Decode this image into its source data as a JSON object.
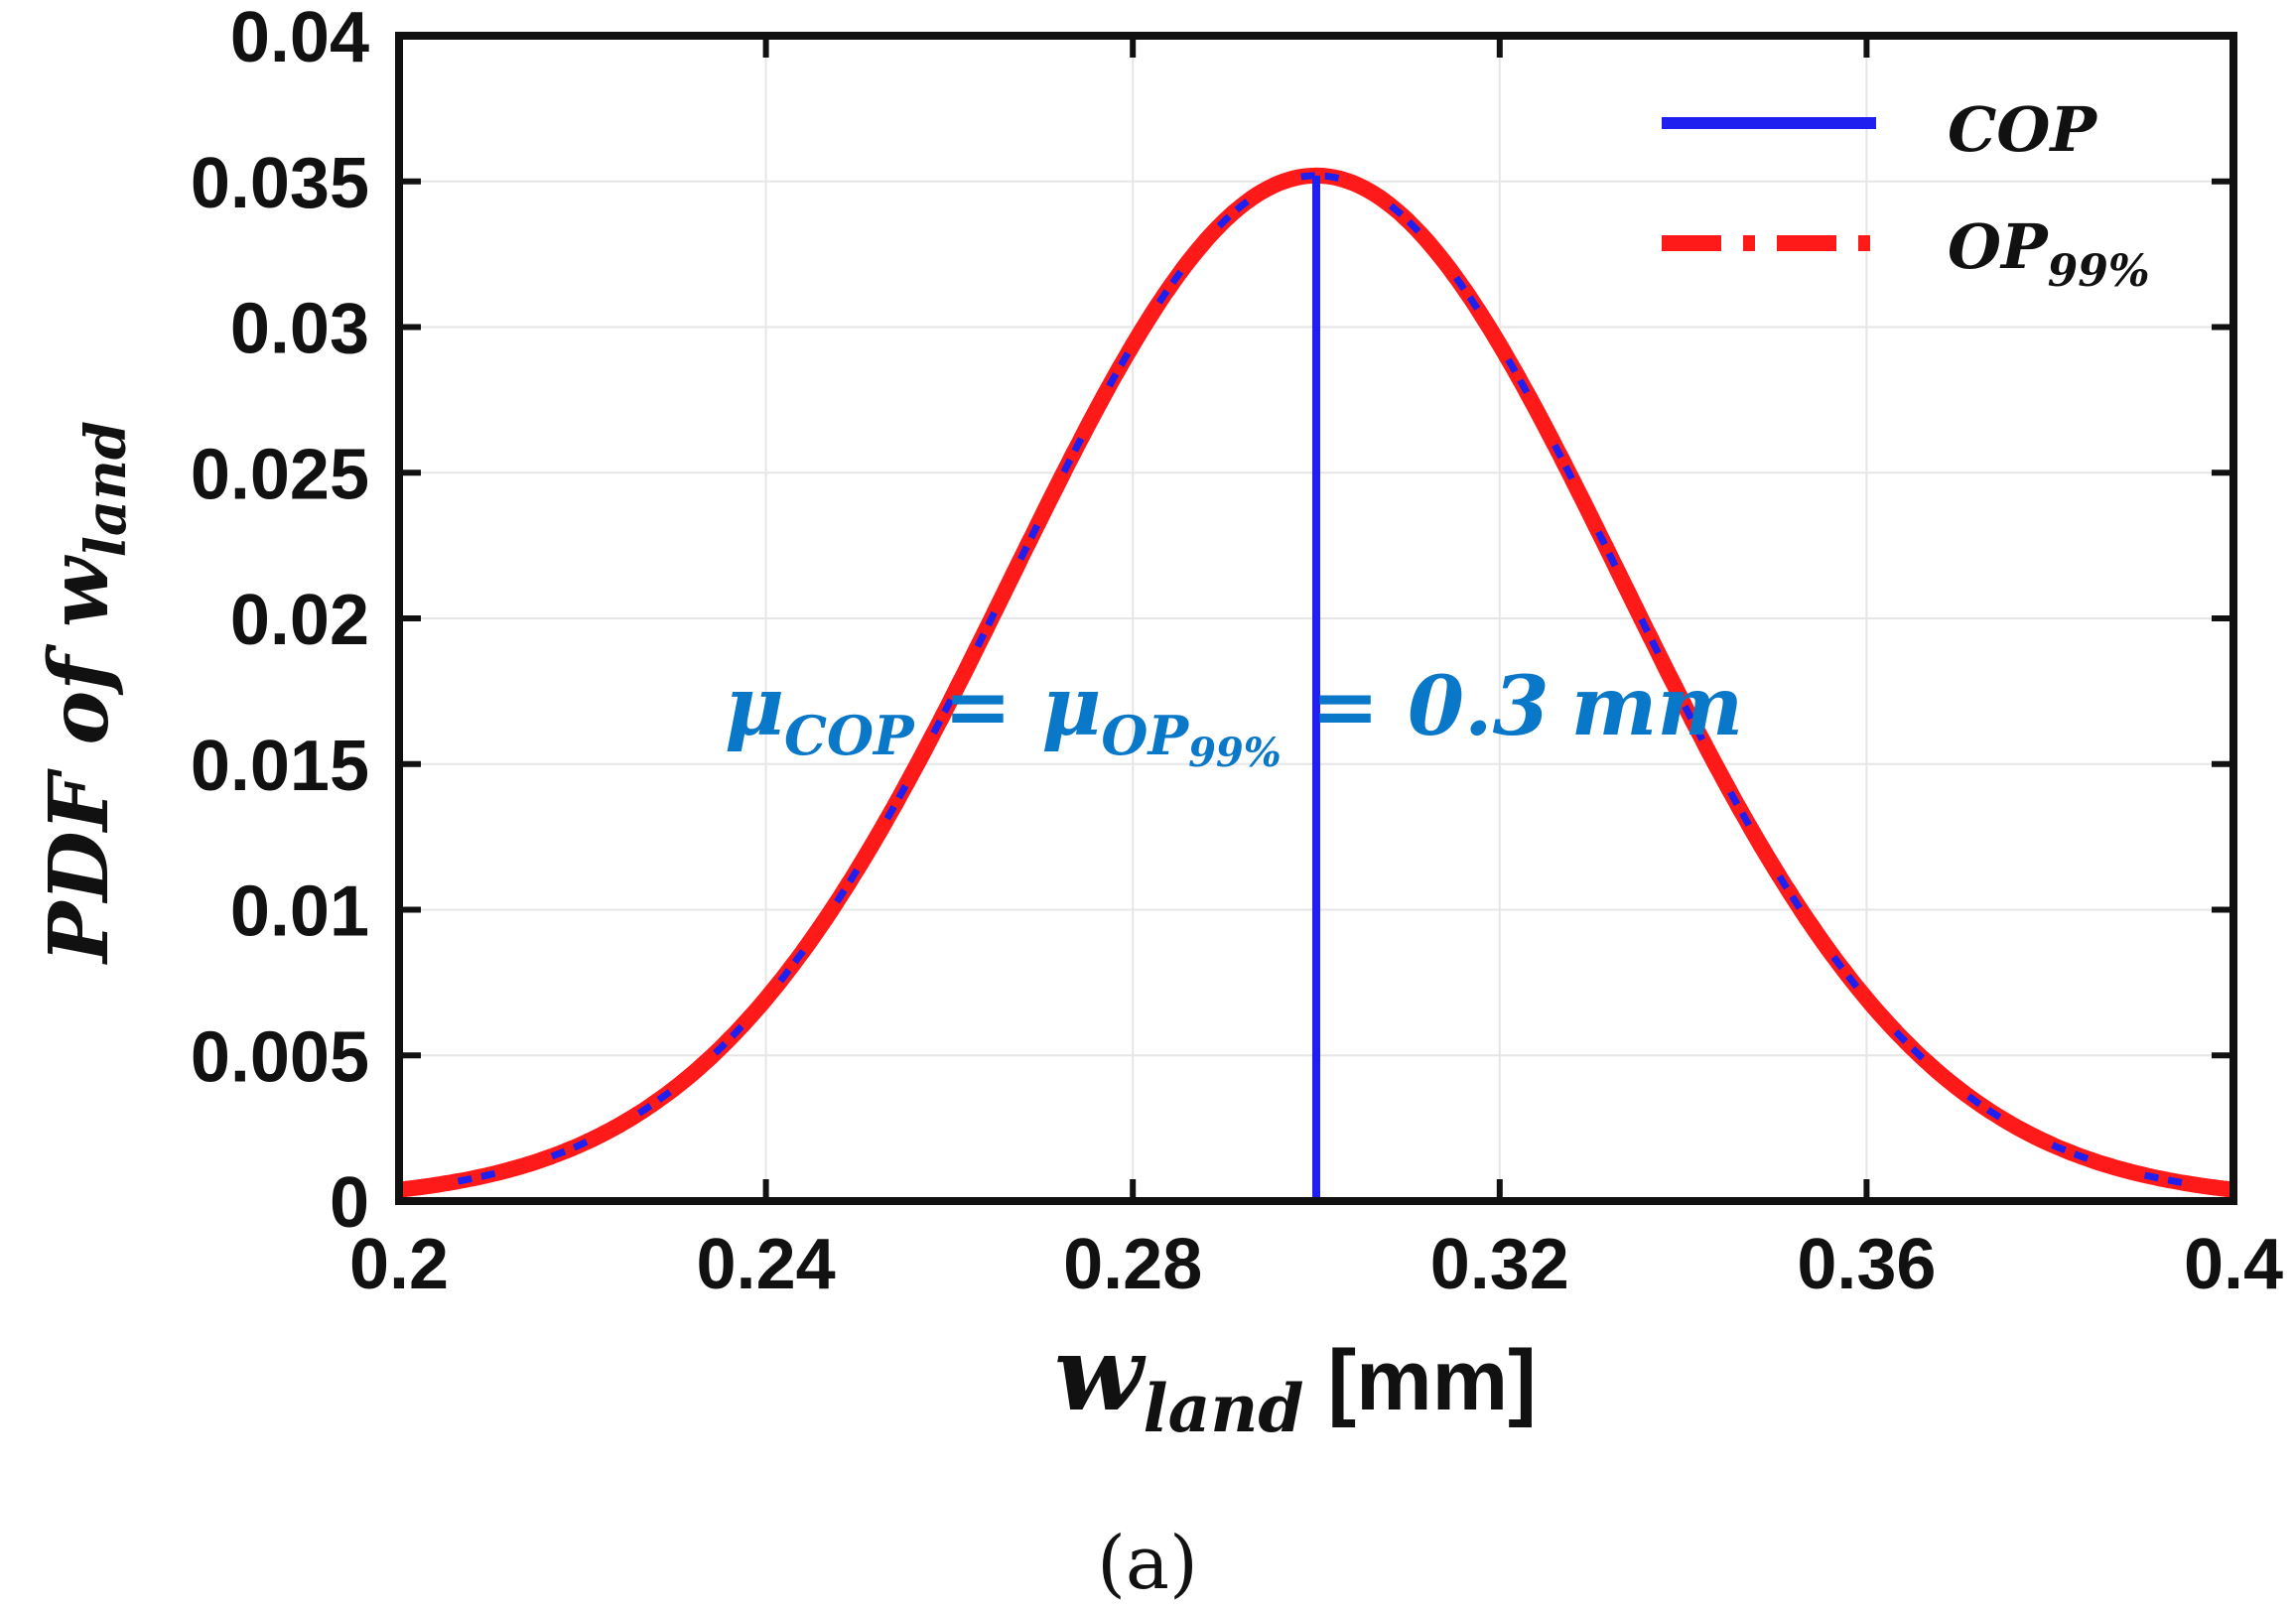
{
  "chart_data": {
    "type": "line",
    "title": "",
    "xlabel": {
      "var": "w",
      "sub": "land",
      "unit": "[mm]"
    },
    "ylabel": {
      "prefix": "PDF of ",
      "var": "w",
      "sub": "land"
    },
    "xlim": [
      0.2,
      0.4
    ],
    "ylim": [
      0,
      0.04
    ],
    "xticks": [
      0.2,
      0.24,
      0.28,
      0.32,
      0.36,
      0.4
    ],
    "xtick_labels": [
      "0.2",
      "0.24",
      "0.28",
      "0.32",
      "0.36",
      "0.4"
    ],
    "yticks": [
      0,
      0.005,
      0.01,
      0.015,
      0.02,
      0.025,
      0.03,
      0.035,
      0.04
    ],
    "ytick_labels": [
      "0",
      "0.005",
      "0.01",
      "0.015",
      "0.02",
      "0.025",
      "0.03",
      "0.035",
      "0.04"
    ],
    "grid": true,
    "legend_position": "top-right",
    "distribution": {
      "mean": 0.3,
      "std": 0.0333
    },
    "series": [
      {
        "name": "COP",
        "style": "solid",
        "color": "#1f1ff0",
        "x": [
          0.2,
          0.21,
          0.22,
          0.23,
          0.24,
          0.25,
          0.26,
          0.27,
          0.28,
          0.29,
          0.3,
          0.31,
          0.32,
          0.33,
          0.34,
          0.35,
          0.36,
          0.37,
          0.38,
          0.39,
          0.4
        ],
        "y": [
          0.0004,
          0.0012,
          0.0024,
          0.0045,
          0.0077,
          0.012,
          0.0169,
          0.0222,
          0.0275,
          0.0317,
          0.0352,
          0.0317,
          0.0275,
          0.0222,
          0.0169,
          0.012,
          0.0077,
          0.0045,
          0.0024,
          0.0012,
          0.0004
        ]
      },
      {
        "name": "OP",
        "sub": "99%",
        "style": "dashdot",
        "color": "#ff1a1a",
        "x": [
          0.2,
          0.21,
          0.22,
          0.23,
          0.24,
          0.25,
          0.26,
          0.27,
          0.28,
          0.29,
          0.3,
          0.31,
          0.32,
          0.33,
          0.34,
          0.35,
          0.36,
          0.37,
          0.38,
          0.39,
          0.4
        ],
        "y": [
          0.0004,
          0.0012,
          0.0024,
          0.0045,
          0.0077,
          0.012,
          0.0169,
          0.0222,
          0.0275,
          0.0317,
          0.0352,
          0.0317,
          0.0275,
          0.0222,
          0.0169,
          0.012,
          0.0077,
          0.0045,
          0.0024,
          0.0012,
          0.0004
        ]
      }
    ],
    "mean_line": {
      "x": 0.3,
      "y_top": 0.0352,
      "color": "#1f1ff0"
    },
    "annotation": {
      "mu": "μ",
      "sub1": "COP",
      "eq": "=",
      "sub2": "OP",
      "sub2b": "99%",
      "value": "= 0.3",
      "unit": "mm",
      "color": "#0a78c8"
    }
  },
  "caption": "(a)"
}
